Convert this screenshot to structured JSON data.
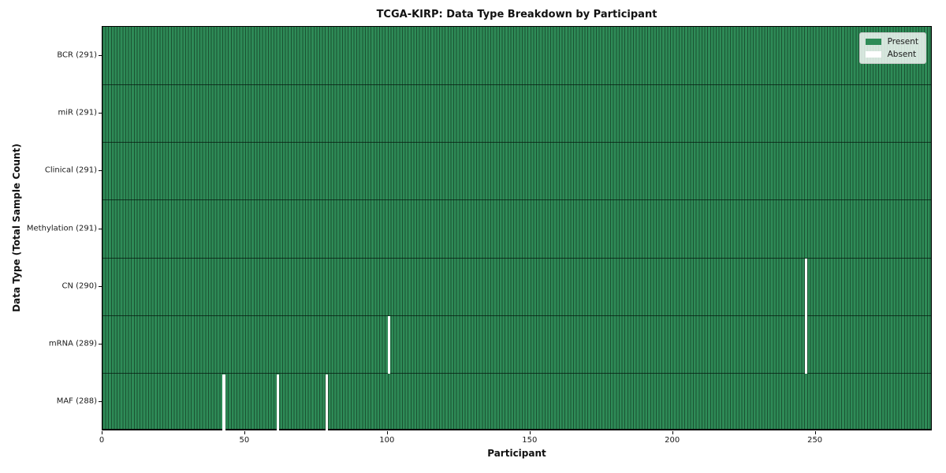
{
  "chart_data": {
    "type": "heatmap",
    "title": "TCGA-KIRP: Data Type Breakdown by Participant",
    "xlabel": "Participant",
    "ylabel": "Data Type (Total Sample Count)",
    "total_participants": 291,
    "x_range": [
      0,
      291
    ],
    "xticks": [
      0,
      50,
      100,
      150,
      200,
      250
    ],
    "grid": "horizontal row separators on, vertical per-participant bar edges",
    "legend_position": "upper right",
    "rows": [
      {
        "data_type": "BCR",
        "label": "BCR (291)",
        "sample_count": 291,
        "absent_participants": []
      },
      {
        "data_type": "miR",
        "label": "miR (291)",
        "sample_count": 291,
        "absent_participants": []
      },
      {
        "data_type": "Clinical",
        "label": "Clinical (291)",
        "sample_count": 291,
        "absent_participants": []
      },
      {
        "data_type": "Methylation",
        "label": "Methylation (291)",
        "sample_count": 291,
        "absent_participants": []
      },
      {
        "data_type": "CN",
        "label": "CN (290)",
        "sample_count": 290,
        "absent_participants": [
          246
        ]
      },
      {
        "data_type": "mRNA",
        "label": "mRNA (289)",
        "sample_count": 289,
        "absent_participants": [
          100,
          246
        ]
      },
      {
        "data_type": "MAF",
        "label": "MAF (288)",
        "sample_count": 288,
        "absent_participants": [
          42,
          61,
          78
        ]
      }
    ],
    "legend": [
      {
        "label": "Present",
        "color": "#2e8b57"
      },
      {
        "label": "Absent",
        "color": "#ffffff"
      }
    ],
    "colors": {
      "present": "#2e8b57",
      "absent": "#ffffff",
      "bar_edge": "#1b5232",
      "row_separator": "#17331f",
      "axis": "#000000",
      "legend_background": "rgba(255,255,255,0.8)"
    }
  }
}
